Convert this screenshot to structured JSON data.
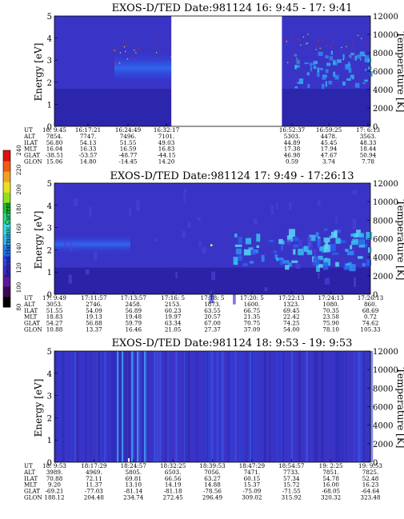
{
  "colorbar": {
    "label": "Second Harmonic Current",
    "ticks": [
      "80",
      "100",
      "120",
      "140",
      "160",
      "180",
      "200",
      "220",
      "240"
    ],
    "colors": [
      "#000000",
      "#3a0a55",
      "#5a1a9a",
      "#3a2ad0",
      "#2a46f0",
      "#2a7cf5",
      "#33b5f0",
      "#30e0e0",
      "#30d880",
      "#20c030",
      "#90e020",
      "#e8e020",
      "#f0a020",
      "#f05a10",
      "#e01010"
    ]
  },
  "chart_data": [
    {
      "type": "heatmap",
      "title": "EXOS-D/TED   Date:981124  16: 9:45 - 17: 9:41",
      "ylabel": "Energy [eV]",
      "ylim": [
        0,
        5
      ],
      "yticks": [
        "0",
        "1",
        "2",
        "3",
        "4",
        "5"
      ],
      "y2label": "Temperature [K]",
      "y2lim": [
        0,
        12000
      ],
      "y2ticks": [
        "0",
        "2000",
        "4000",
        "6000",
        "8000",
        "10000",
        "12000"
      ],
      "data_gaps": [
        [
          0.37,
          0.72
        ]
      ],
      "columns": [
        {
          "UT": "16: 9:45",
          "ALT": "7854.",
          "ILAT": "56.80",
          "MLT": "16.04",
          "GLAT": "-38.51",
          "GLON": "15.06"
        },
        {
          "UT": "16:17:21",
          "ALT": "7747.",
          "ILAT": "54.13",
          "MLT": "16.33",
          "GLAT": "-53.57",
          "GLON": "14.80"
        },
        {
          "UT": "16:24:49",
          "ALT": "7496.",
          "ILAT": "51.55",
          "MLT": "16.59",
          "GLAT": "-48.77",
          "GLON": "-14.45"
        },
        {
          "UT": "16:32:17",
          "ALT": "7101.",
          "ILAT": "49.03",
          "MLT": "16.83",
          "GLAT": "-44.15",
          "GLON": "14.20"
        },
        {
          "UT": "16:52:37",
          "ALT": "5303.",
          "ILAT": "44.89",
          "MLT": "17.38",
          "GLAT": "46.98",
          "GLON": "0.59"
        },
        {
          "UT": "16:59:25",
          "ALT": "4478.",
          "ILAT": "45.45",
          "MLT": "17.94",
          "GLAT": "47.67",
          "GLON": "3.74"
        },
        {
          "UT": "17: 6:13",
          "ALT": "3563.",
          "ILAT": "48.33",
          "MLT": "18.44",
          "GLAT": "50.94",
          "GLON": "7.78"
        }
      ]
    },
    {
      "type": "heatmap",
      "title": "EXOS-D/TED   Date:981124  17: 9:49 - 17:26:13",
      "ylabel": "Energy [eV]",
      "ylim": [
        0,
        5
      ],
      "yticks": [
        "0",
        "1",
        "2",
        "3",
        "4",
        "5"
      ],
      "y2label": "Temperature [K]",
      "y2lim": [
        0,
        12000
      ],
      "y2ticks": [
        "0",
        "2000",
        "4000",
        "6000",
        "8000",
        "10000",
        "12000"
      ],
      "columns": [
        {
          "UT": "17: 9:49",
          "ALT": "3053.",
          "ILAT": "51.55",
          "MLT": "18.83",
          "GLAT": "54.27",
          "GLON": "10.88"
        },
        {
          "UT": "17:11:57",
          "ALT": "2746.",
          "ILAT": "54.09",
          "MLT": "19.13",
          "GLAT": "56.88",
          "GLON": "13.37"
        },
        {
          "UT": "17:13:57",
          "ALT": "2458.",
          "ILAT": "56.89",
          "MLT": "19.48",
          "GLAT": "59.79",
          "GLON": "16.46"
        },
        {
          "UT": "17:16: 5",
          "ALT": "2153.",
          "ILAT": "60.23",
          "MLT": "19.97",
          "GLAT": "63.34",
          "GLON": "21.05"
        },
        {
          "UT": "17:18: 5",
          "ALT": "1873.",
          "ILAT": "63.55",
          "MLT": "20.57",
          "GLAT": "67.00",
          "GLON": "27.37"
        },
        {
          "UT": "17:20: 5",
          "ALT": "1600.",
          "ILAT": "66.75",
          "MLT": "21.35",
          "GLAT": "70.75",
          "GLON": "37.09"
        },
        {
          "UT": "17:22:13",
          "ALT": "1323.",
          "ILAT": "69.45",
          "MLT": "22.42",
          "GLAT": "74.25",
          "GLON": "54.00"
        },
        {
          "UT": "17:24:13",
          "ALT": "1080.",
          "ILAT": "70.35",
          "MLT": "23.58",
          "GLAT": "75.90",
          "GLON": "78.10"
        },
        {
          "UT": "17:26:13",
          "ALT": "860.",
          "ILAT": "68.69",
          "MLT": "0.72",
          "GLAT": "74.62",
          "GLON": "105.33"
        }
      ]
    },
    {
      "type": "heatmap",
      "title": "EXOS-D/TED   Date:981124  18: 9:53 - 19: 9:53",
      "ylabel": "Energy [eV]",
      "ylim": [
        0,
        5
      ],
      "yticks": [
        "0",
        "1",
        "2",
        "3",
        "4",
        "5"
      ],
      "y2label": "Temperature [K]",
      "y2lim": [
        0,
        12000
      ],
      "y2ticks": [
        "0",
        "2000",
        "4000",
        "6000",
        "8000",
        "10000",
        "12000"
      ],
      "columns": [
        {
          "UT": "18: 9:53",
          "ALT": "3989.",
          "ILAT": "70.88",
          "MLT": "9.20",
          "GLAT": "-69.21",
          "GLON": "188.12"
        },
        {
          "UT": "18:17:29",
          "ALT": "4969.",
          "ILAT": "72.11",
          "MLT": "11.37",
          "GLAT": "-77.03",
          "GLON": "204.48"
        },
        {
          "UT": "18:24:57",
          "ALT": "5805.",
          "ILAT": "69.81",
          "MLT": "13.10",
          "GLAT": "-81.14",
          "GLON": "234.74"
        },
        {
          "UT": "18:32:25",
          "ALT": "6503.",
          "ILAT": "66.56",
          "MLT": "14.19",
          "GLAT": "-81.18",
          "GLON": "272.45"
        },
        {
          "UT": "18:39:53",
          "ALT": "7056.",
          "ILAT": "63.27",
          "MLT": "14.88",
          "GLAT": "-78.56",
          "GLON": "296.49"
        },
        {
          "UT": "18:47:29",
          "ALT": "7471.",
          "ILAT": "60.15",
          "MLT": "15.37",
          "GLAT": "-75.09",
          "GLON": "309.02"
        },
        {
          "UT": "18:54:57",
          "ALT": "7733.",
          "ILAT": "57.34",
          "MLT": "15.72",
          "GLAT": "-71.55",
          "GLON": "315.92"
        },
        {
          "UT": "19: 2:25",
          "ALT": "7851.",
          "ILAT": "54.78",
          "MLT": "16.00",
          "GLAT": "-68.05",
          "GLON": "320.32"
        },
        {
          "UT": "19: 9:53",
          "ALT": "7825.",
          "ILAT": "52.48",
          "MLT": "16.23",
          "GLAT": "-64.64",
          "GLON": "323.48"
        }
      ]
    }
  ],
  "row_labels": [
    "UT",
    "ALT",
    "ILAT",
    "MLT",
    "GLAT",
    "GLON"
  ]
}
